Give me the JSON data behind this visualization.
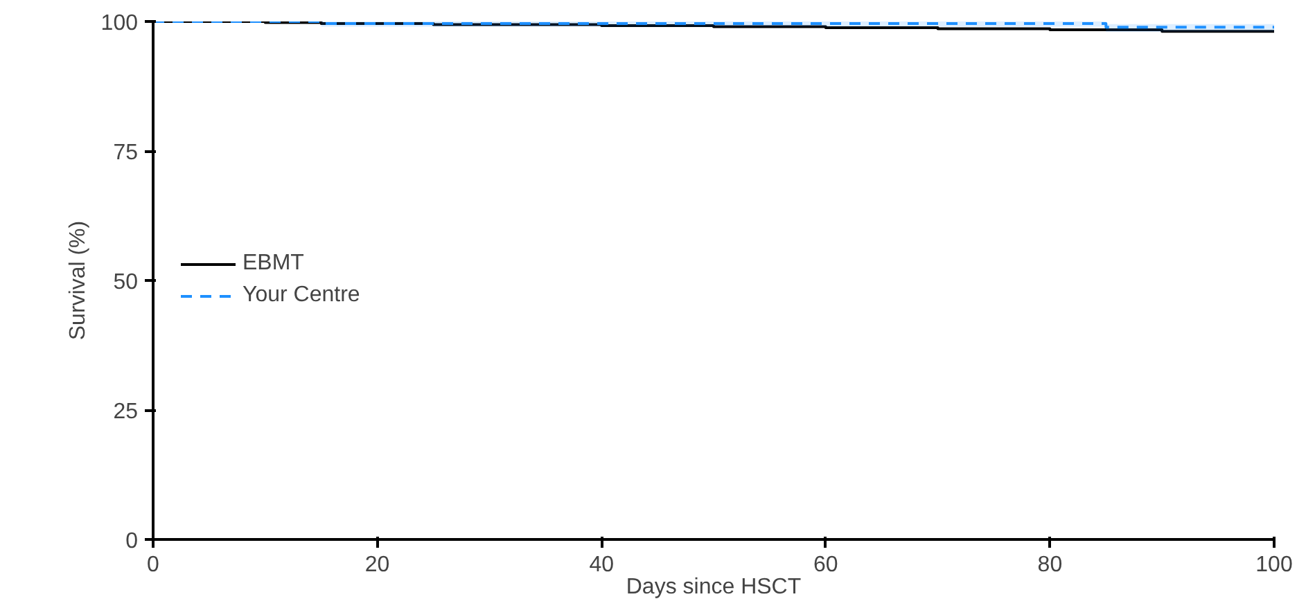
{
  "chart_data": {
    "type": "step",
    "xlabel": "Days since HSCT",
    "ylabel": "Survival (%)",
    "xlim": [
      0,
      100
    ],
    "ylim": [
      0,
      100
    ],
    "xticks": [
      0,
      20,
      40,
      60,
      80,
      100
    ],
    "yticks": [
      0,
      25,
      50,
      75,
      100
    ],
    "grid": false,
    "legend": "left",
    "series": [
      {
        "name": "EBMT",
        "color": "#000000",
        "line_style": "solid",
        "x": [
          0,
          10,
          15,
          25,
          40,
          50,
          60,
          70,
          80,
          90,
          100
        ],
        "values": [
          100,
          99.8,
          99.6,
          99.4,
          99.2,
          99,
          98.8,
          98.6,
          98.4,
          98.1,
          98
        ]
      },
      {
        "name": "Your Centre",
        "color": "#1e90ff",
        "line_style": "dashed",
        "x": [
          0,
          15,
          85,
          100
        ],
        "values": [
          100,
          99.6,
          98.9,
          98.9
        ],
        "lower": [
          100,
          99,
          98,
          98
        ],
        "upper": [
          100,
          100,
          99.5,
          99.5
        ]
      }
    ]
  }
}
